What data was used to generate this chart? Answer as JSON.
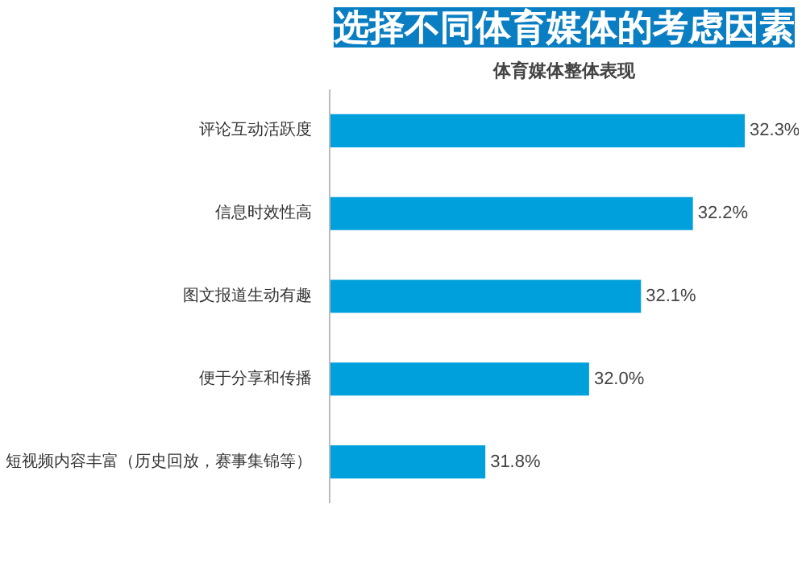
{
  "chart_data": {
    "type": "bar",
    "orientation": "horizontal",
    "title": "选择不同体育媒体的考虑因素",
    "subtitle": "体育媒体整体表现",
    "categories": [
      "评论互动活跃度",
      "信息时效性高",
      "图文报道生动有趣",
      "便于分享和传播",
      "短视频内容丰富（历史回放，赛事集锦等）"
    ],
    "values": [
      32.3,
      32.2,
      32.1,
      32.0,
      31.8
    ],
    "value_labels": [
      "32.3%",
      "32.2%",
      "32.1%",
      "32.0%",
      "31.8%"
    ],
    "color": "#00a0dc",
    "xlim": [
      31.5,
      32.3
    ],
    "tick_labels": "y",
    "grid": false
  }
}
